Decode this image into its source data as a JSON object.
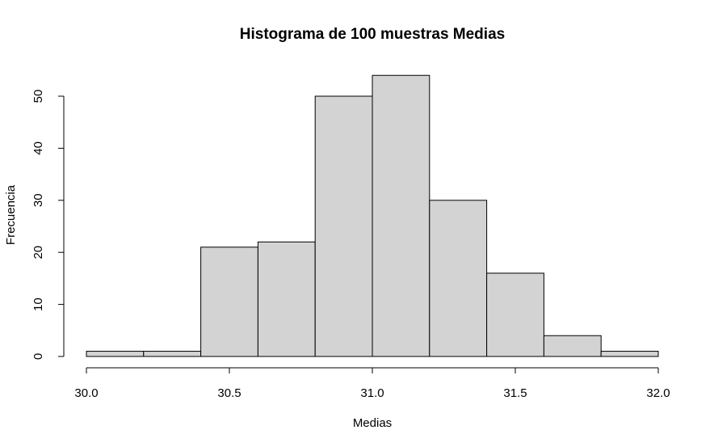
{
  "chart_data": {
    "type": "bar",
    "title": "Histograma de 100 muestras Medias",
    "xlabel": "Medias",
    "ylabel": "Frecuencia",
    "bins": [
      {
        "from": 30.0,
        "to": 30.2,
        "count": 1
      },
      {
        "from": 30.2,
        "to": 30.4,
        "count": 1
      },
      {
        "from": 30.4,
        "to": 30.6,
        "count": 21
      },
      {
        "from": 30.6,
        "to": 30.8,
        "count": 22
      },
      {
        "from": 30.8,
        "to": 31.0,
        "count": 50
      },
      {
        "from": 31.0,
        "to": 31.2,
        "count": 54
      },
      {
        "from": 31.2,
        "to": 31.4,
        "count": 30
      },
      {
        "from": 31.4,
        "to": 31.6,
        "count": 16
      },
      {
        "from": 31.6,
        "to": 31.8,
        "count": 4
      },
      {
        "from": 31.8,
        "to": 32.0,
        "count": 1
      }
    ],
    "xlim": [
      30.0,
      32.0
    ],
    "ylim": [
      0,
      54
    ],
    "x_ticks": [
      "30.0",
      "30.5",
      "31.0",
      "31.5",
      "32.0"
    ],
    "y_ticks": [
      "0",
      "10",
      "20",
      "30",
      "40",
      "50"
    ],
    "bar_color": "#d3d3d3",
    "grid": false,
    "legend": "none"
  }
}
